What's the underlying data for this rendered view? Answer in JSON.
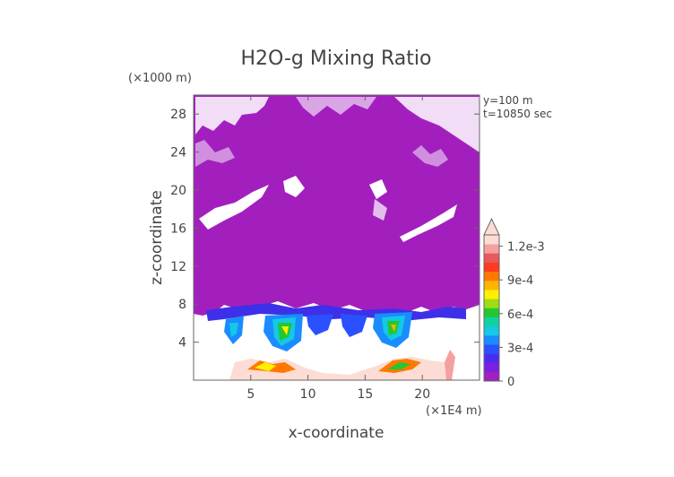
{
  "chart_data": {
    "type": "heatmap",
    "title": "H2O-g Mixing Ratio",
    "xlabel": "x-coordinate",
    "ylabel": "z-coordinate",
    "x_unit": "(×1E4 m)",
    "y_unit": "(×1000 m)",
    "annotations": [
      "y=100  m",
      "t=10850 sec"
    ],
    "xlim": [
      0,
      25
    ],
    "ylim": [
      0,
      30
    ],
    "x_ticks": [
      5,
      10,
      15,
      20
    ],
    "y_ticks": [
      4,
      8,
      12,
      16,
      20,
      24,
      28
    ],
    "colorbar": {
      "min": 0,
      "max": 0.0013,
      "ticks": [
        {
          "value": 0,
          "label": "0"
        },
        {
          "value": 0.0003,
          "label": "3e-4"
        },
        {
          "value": 0.0006,
          "label": "6e-4"
        },
        {
          "value": 0.0009,
          "label": "9e-4"
        },
        {
          "value": 0.0012,
          "label": "1.2e-3"
        }
      ],
      "extend": "max",
      "colors": [
        "#a020c0",
        "#7d1ee0",
        "#4b2bf0",
        "#2a50ff",
        "#1a8cff",
        "#14c8e6",
        "#10d2a0",
        "#22c830",
        "#a0dc14",
        "#fff000",
        "#ffb400",
        "#ff7800",
        "#ff3c1e",
        "#e85a5a",
        "#f5a0a0",
        "#fcdcd4"
      ]
    },
    "fields": {
      "upper_layer": {
        "z_range": [
          8,
          29.5
        ],
        "value": 0.0,
        "color_band": 0
      },
      "lower_layer": {
        "z_range": [
          0,
          8
        ],
        "value_range": [
          0,
          0.0013
        ]
      }
    }
  }
}
